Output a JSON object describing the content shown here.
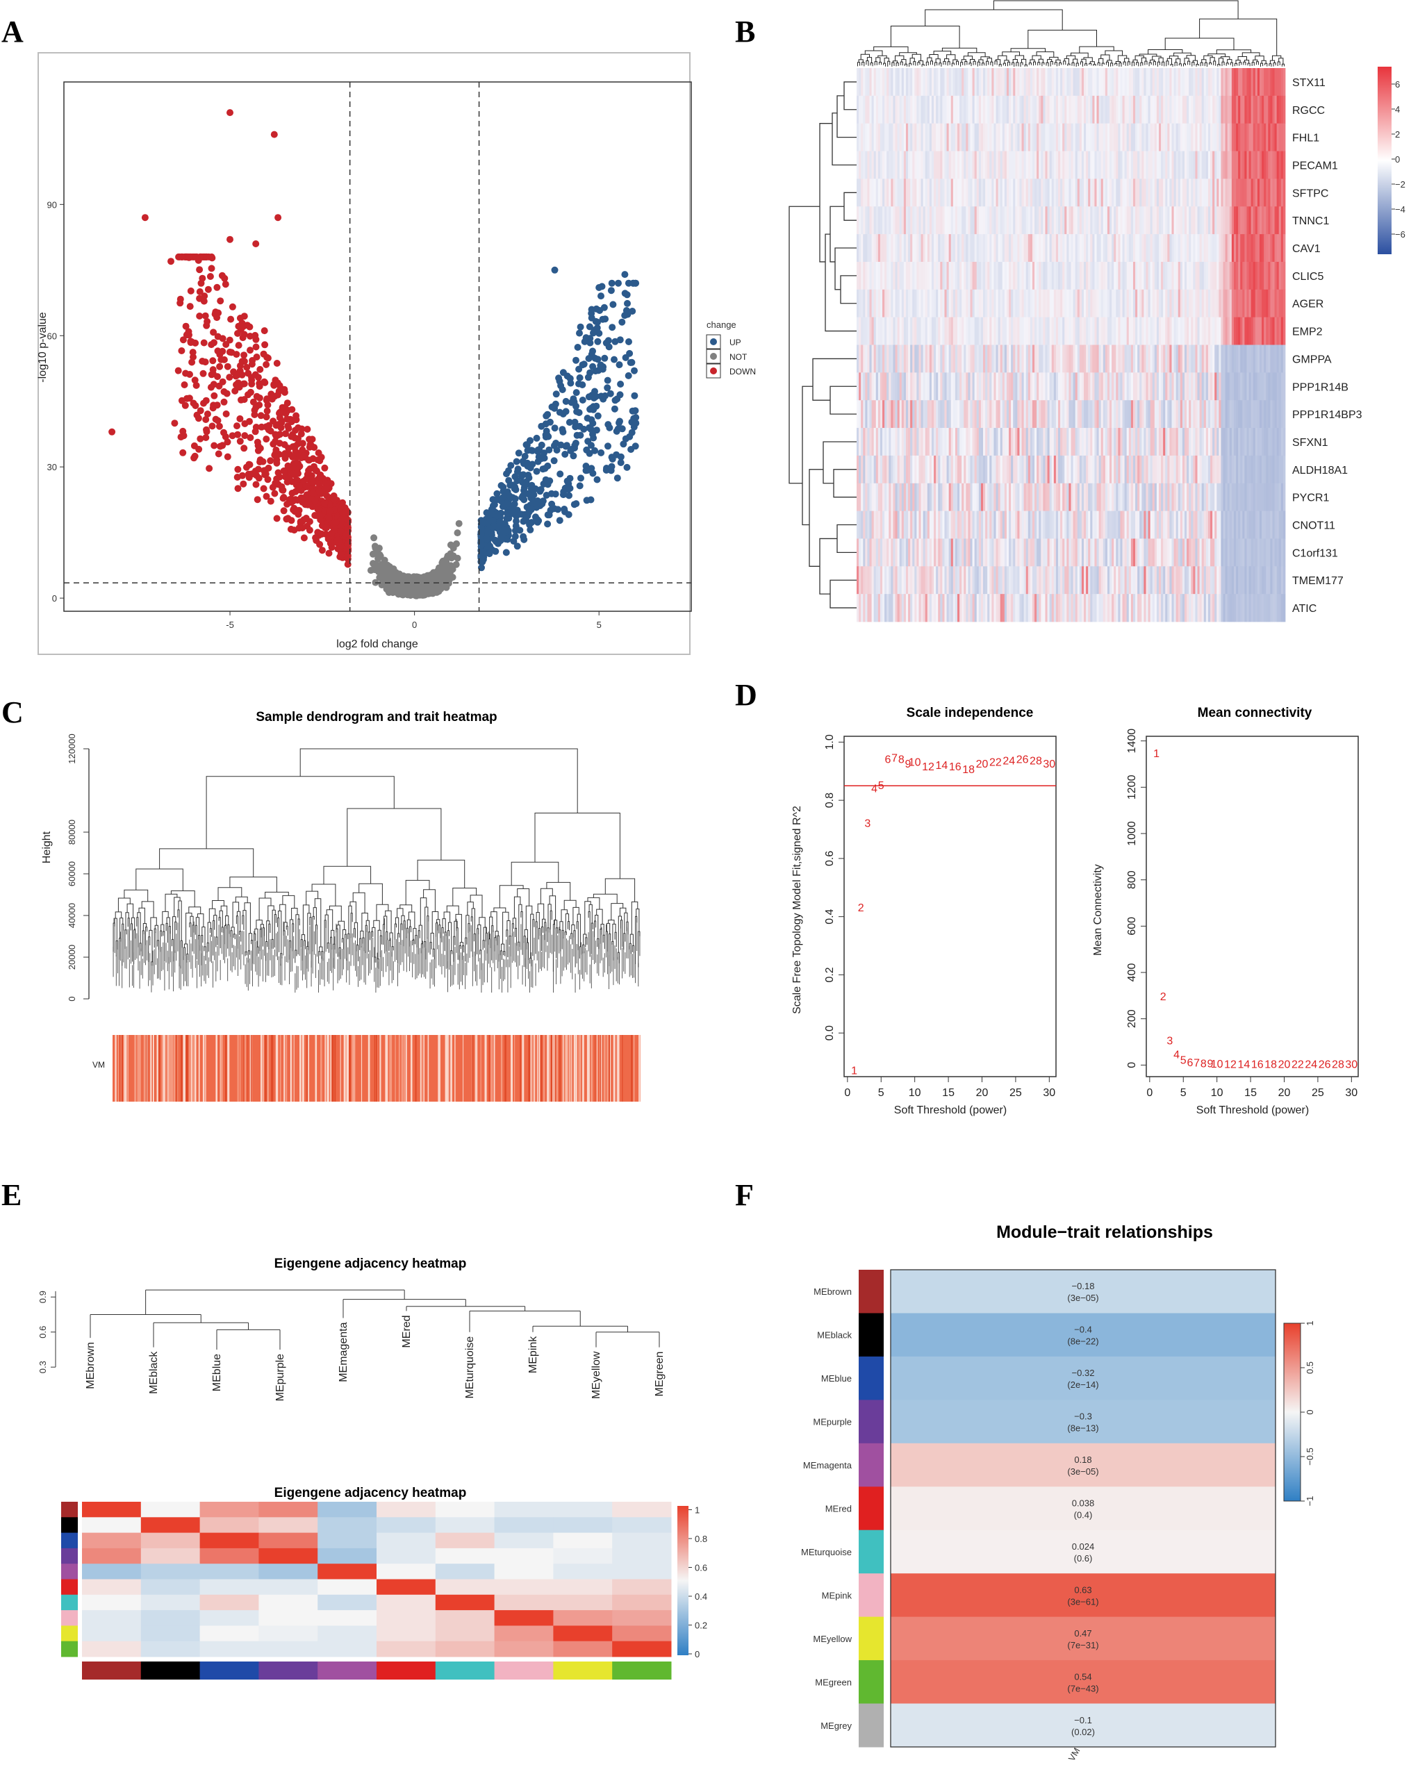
{
  "panels": [
    "A",
    "B",
    "C",
    "D",
    "E",
    "F"
  ],
  "chart_data": [
    {
      "id": "A",
      "type": "scatter",
      "xlabel": "log2 fold change",
      "ylabel": "-log10 p-value",
      "xlim": [
        -9.5,
        7.5
      ],
      "ylim": [
        -3,
        118
      ],
      "xticks": [
        -5,
        0,
        5
      ],
      "yticks": [
        0,
        30,
        60,
        90
      ],
      "vlines": [
        -1.75,
        1.75
      ],
      "hline": 3.5,
      "legend_title": "change",
      "series": [
        {
          "name": "UP",
          "color": "#2c5a8c"
        },
        {
          "name": "NOT",
          "color": "#808080"
        },
        {
          "name": "DOWN",
          "color": "#c8242b"
        }
      ],
      "notable_points": [
        [
          -5.0,
          111
        ],
        [
          -3.8,
          106
        ],
        [
          -7.3,
          87
        ],
        [
          -3.7,
          87
        ],
        [
          -5.0,
          82
        ],
        [
          -4.3,
          81
        ],
        [
          -6.6,
          77
        ],
        [
          -8.2,
          38
        ],
        [
          -6.5,
          40
        ],
        [
          -6.4,
          52
        ],
        [
          5.7,
          74
        ],
        [
          3.8,
          75
        ],
        [
          5.0,
          71
        ],
        [
          6.0,
          40
        ],
        [
          4.5,
          62
        ],
        [
          4.8,
          66
        ]
      ]
    },
    {
      "id": "B",
      "type": "heatmap",
      "rows": [
        "STX11",
        "RGCC",
        "FHL1",
        "PECAM1",
        "SFTPC",
        "TNNC1",
        "CAV1",
        "CLIC5",
        "AGER",
        "EMP2",
        "GMPPA",
        "PPP1R14B",
        "PPP1R14BP3",
        "SFXN1",
        "ALDH18A1",
        "PYCR1",
        "CNOT11",
        "C1orf131",
        "TMEM177",
        "ATIC"
      ],
      "colorbar_ticks": [
        "6",
        "4",
        "2",
        "0",
        "−2",
        "−4",
        "−6"
      ],
      "colorscale": [
        "#2b4fa0",
        "#ffffff",
        "#e8343c"
      ]
    },
    {
      "id": "C",
      "type": "dendrogram",
      "title": "Sample dendrogram and trait heatmap",
      "ylabel": "Height",
      "yticks": [
        "0",
        "20000",
        "40000",
        "60000",
        "80000",
        "120000"
      ],
      "trait_label": "VM"
    },
    {
      "id": "D1",
      "type": "scatter",
      "title": "Scale independence",
      "xlabel": "Soft Threshold (power)",
      "ylabel": "Scale Free Topology Model Fit,signed R^2",
      "xlim": [
        -0.5,
        31
      ],
      "ylim": [
        -0.15,
        1.02
      ],
      "xticks": [
        0,
        5,
        10,
        15,
        20,
        25,
        30
      ],
      "yticks": [
        "0.0",
        "0.2",
        "0.4",
        "0.6",
        "0.8",
        "1.0"
      ],
      "hline": 0.85,
      "x": [
        1,
        2,
        3,
        4,
        5,
        6,
        7,
        8,
        9,
        10,
        12,
        14,
        16,
        18,
        20,
        22,
        24,
        26,
        28,
        30
      ],
      "y": [
        -0.13,
        0.43,
        0.72,
        0.84,
        0.85,
        0.94,
        0.945,
        0.94,
        0.925,
        0.93,
        0.915,
        0.92,
        0.915,
        0.905,
        0.925,
        0.93,
        0.935,
        0.94,
        0.935,
        0.925
      ]
    },
    {
      "id": "D2",
      "type": "scatter",
      "title": "Mean connectivity",
      "xlabel": "Soft Threshold (power)",
      "ylabel": "Mean Connectivity",
      "xlim": [
        -0.5,
        31
      ],
      "ylim": [
        -50,
        1420
      ],
      "xticks": [
        0,
        5,
        10,
        15,
        20,
        25,
        30
      ],
      "yticks": [
        "0",
        "200",
        "400",
        "600",
        "800",
        "1000",
        "1200",
        "1400"
      ],
      "x": [
        1,
        2,
        3,
        4,
        5,
        6,
        7,
        8,
        9,
        10,
        12,
        14,
        16,
        18,
        20,
        22,
        24,
        26,
        28,
        30
      ],
      "y": [
        1345,
        295,
        105,
        45,
        20,
        10,
        8,
        6,
        5,
        4,
        3,
        3,
        2,
        2,
        2,
        2,
        2,
        2,
        2,
        2
      ]
    },
    {
      "id": "E",
      "type": "heatmap",
      "title_top": "Eigengene adjacency heatmap",
      "title_bottom": "Eigengene adjacency heatmap",
      "dendro_yticks": [
        "0.3",
        "0.6",
        "0.9"
      ],
      "modules": [
        "MEbrown",
        "MEblack",
        "MEblue",
        "MEpurple",
        "MEmagenta",
        "MEred",
        "MEturquoise",
        "MEpink",
        "MEyellow",
        "MEgreen"
      ],
      "module_colors": [
        "#a52a2a",
        "#000000",
        "#1f4aa8",
        "#6a3d9a",
        "#a050a0",
        "#e02020",
        "#40c0c0",
        "#f2b3c2",
        "#e6e62e",
        "#60b830"
      ],
      "colorbar_ticks": [
        "0",
        "0.2",
        "0.4",
        "0.6",
        "0.8",
        "1"
      ],
      "matrix": [
        [
          1.0,
          0.5,
          0.75,
          0.8,
          0.3,
          0.55,
          0.5,
          0.45,
          0.45,
          0.55
        ],
        [
          0.5,
          1.0,
          0.65,
          0.6,
          0.35,
          0.4,
          0.45,
          0.4,
          0.4,
          0.42
        ],
        [
          0.75,
          0.65,
          1.0,
          0.85,
          0.35,
          0.45,
          0.6,
          0.45,
          0.5,
          0.45
        ],
        [
          0.8,
          0.6,
          0.85,
          1.0,
          0.3,
          0.45,
          0.5,
          0.5,
          0.48,
          0.45
        ],
        [
          0.3,
          0.35,
          0.35,
          0.3,
          1.0,
          0.5,
          0.4,
          0.5,
          0.45,
          0.45
        ],
        [
          0.55,
          0.4,
          0.45,
          0.45,
          0.5,
          1.0,
          0.55,
          0.55,
          0.55,
          0.6
        ],
        [
          0.5,
          0.45,
          0.6,
          0.5,
          0.4,
          0.55,
          1.0,
          0.6,
          0.6,
          0.65
        ],
        [
          0.45,
          0.4,
          0.45,
          0.5,
          0.5,
          0.55,
          0.6,
          1.0,
          0.75,
          0.72
        ],
        [
          0.45,
          0.4,
          0.5,
          0.48,
          0.45,
          0.55,
          0.6,
          0.75,
          1.0,
          0.8
        ],
        [
          0.55,
          0.42,
          0.45,
          0.45,
          0.45,
          0.6,
          0.65,
          0.72,
          0.8,
          1.0
        ]
      ]
    },
    {
      "id": "F",
      "type": "heatmap",
      "title": "Module−trait relationships",
      "trait": "VM",
      "colorbar_ticks": [
        "1",
        "0.5",
        "0",
        "−0.5",
        "−1"
      ],
      "modules": [
        "MEbrown",
        "MEblack",
        "MEblue",
        "MEpurple",
        "MEmagenta",
        "MEred",
        "MEturquoise",
        "MEpink",
        "MEyellow",
        "MEgreen",
        "MEgrey"
      ],
      "module_colors": [
        "#a52a2a",
        "#000000",
        "#1f4aa8",
        "#6a3d9a",
        "#a050a0",
        "#e02020",
        "#40c0c0",
        "#f2b3c2",
        "#e6e62e",
        "#60b830",
        "#b0b0b0"
      ],
      "values": [
        -0.18,
        -0.4,
        -0.32,
        -0.3,
        0.18,
        0.038,
        0.024,
        0.63,
        0.47,
        0.54,
        -0.1
      ],
      "labels": [
        "−0.18",
        "−0.4",
        "−0.32",
        "−0.3",
        "0.18",
        "0.038",
        "0.024",
        "0.63",
        "0.47",
        "0.54",
        "−0.1"
      ],
      "pvalues": [
        "(3e−05)",
        "(8e−22)",
        "(2e−14)",
        "(8e−13)",
        "(3e−05)",
        "(0.4)",
        "(0.6)",
        "(3e−61)",
        "(7e−31)",
        "(7e−43)",
        "(0.02)"
      ]
    }
  ]
}
